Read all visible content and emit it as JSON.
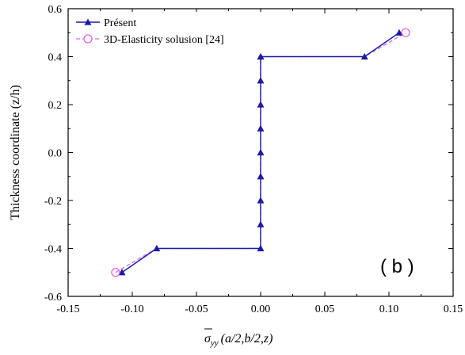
{
  "chart_data": {
    "type": "line",
    "xlabel": {
      "symbol": "σ",
      "subscript": "yy",
      "argument": "(a/2,b/2,z)"
    },
    "ylabel": "Thickness coordinate (z/h)",
    "xlim": [
      -0.15,
      0.15
    ],
    "ylim": [
      -0.6,
      0.6
    ],
    "xticks": [
      -0.15,
      -0.1,
      -0.05,
      0.0,
      0.05,
      0.1,
      0.15
    ],
    "yticks": [
      -0.6,
      -0.4,
      -0.2,
      0.0,
      0.2,
      0.4,
      0.6
    ],
    "xtick_labels": [
      "-0.15",
      "-0.10",
      "-0.05",
      "0.00",
      "0.05",
      "0.10",
      "0.15"
    ],
    "ytick_labels": [
      "-0.6",
      "-0.4",
      "-0.2",
      "0.0",
      "0.2",
      "0.4",
      "0.6"
    ],
    "legend_position": "top-left",
    "annotation": "( b )",
    "series": [
      {
        "name": "Présent",
        "color": "#1a1aa6",
        "line_style": "solid",
        "marker": "filled-triangle",
        "x": [
          -0.108,
          -0.081,
          0.0,
          0.0,
          0.0,
          0.0,
          0.0,
          0.0,
          0.0,
          0.0,
          0.0,
          0.0,
          0.081,
          0.108
        ],
        "y": [
          -0.5,
          -0.4,
          -0.4,
          -0.3,
          -0.2,
          -0.1,
          0.0,
          0.1,
          0.2,
          0.3,
          0.4,
          0.4,
          0.4,
          0.5
        ]
      },
      {
        "name": "3D-Elasticity solusion [24]",
        "color": "#e066e0",
        "line_style": "dashed",
        "marker": "open-circle",
        "x": [
          -0.113,
          -0.081,
          0.0,
          0.0,
          0.081,
          0.113
        ],
        "y": [
          -0.5,
          -0.4,
          -0.4,
          0.4,
          0.4,
          0.5
        ]
      }
    ]
  }
}
